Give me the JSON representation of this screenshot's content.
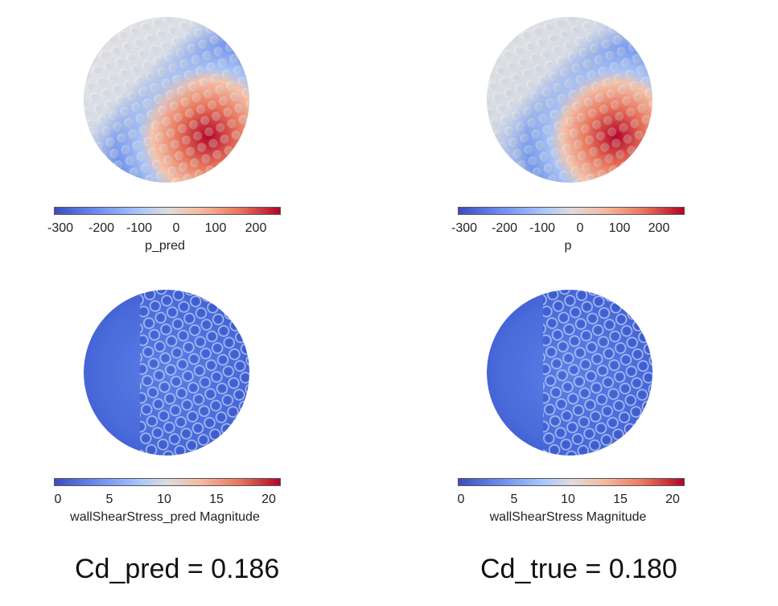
{
  "panels": {
    "p_pred": {
      "ticks": [
        "-300",
        "-200",
        "-100",
        "0",
        "100",
        "200"
      ],
      "title": "p_pred"
    },
    "p_true": {
      "ticks": [
        "-300",
        "-200",
        "-100",
        "0",
        "100",
        "200"
      ],
      "title": "p"
    },
    "wss_pred": {
      "ticks": [
        "0",
        "5",
        "10",
        "15",
        "20"
      ],
      "title": "wallShearStress_pred Magnitude"
    },
    "wss_true": {
      "ticks": [
        "0",
        "5",
        "10",
        "15",
        "20"
      ],
      "title": "wallShearStress Magnitude"
    }
  },
  "results": {
    "cd_pred": "Cd_pred = 0.186",
    "cd_true": "Cd_true = 0.180"
  },
  "colormap": {
    "low": "#3b4cc0",
    "mid": "#dddcdc",
    "high": "#b40426"
  }
}
